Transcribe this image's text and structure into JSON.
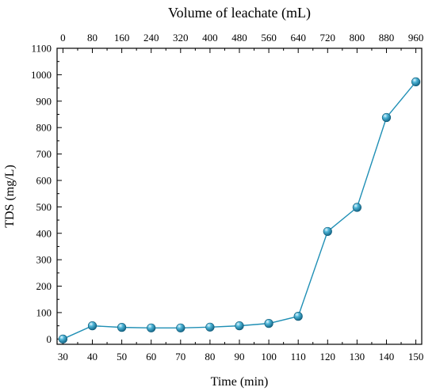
{
  "chart_data": {
    "type": "line",
    "xlabel": "Time (min)",
    "ylabel": "TDS (mg/L)",
    "top_xlabel": "Volume of leachate (mL)",
    "xlim": [
      28,
      152
    ],
    "ylim": [
      -20,
      1100
    ],
    "x_ticks": [
      30,
      40,
      50,
      60,
      70,
      80,
      90,
      100,
      110,
      120,
      130,
      140,
      150
    ],
    "y_ticks": [
      0,
      100,
      200,
      300,
      400,
      500,
      600,
      700,
      800,
      900,
      1000,
      1100
    ],
    "top_ticks": [
      0,
      80,
      160,
      240,
      320,
      400,
      480,
      560,
      640,
      720,
      800,
      880,
      960
    ],
    "grid": false,
    "legend": "none",
    "series": [
      {
        "color": "#1f8fb5",
        "marker": "sphere",
        "x": [
          30,
          40,
          50,
          60,
          70,
          80,
          90,
          100,
          110,
          120,
          130,
          140,
          150
        ],
        "y": [
          0,
          50,
          44,
          42,
          42,
          45,
          50,
          59,
          86,
          407,
          498,
          838,
          973
        ]
      }
    ]
  }
}
